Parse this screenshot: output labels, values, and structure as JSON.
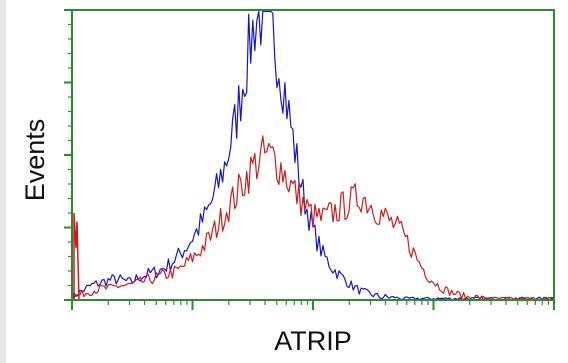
{
  "chart_data": {
    "type": "line",
    "title": "",
    "xlabel": "ATRIP",
    "ylabel": "Events",
    "xlim": [
      0,
      1000
    ],
    "ylim": [
      0,
      100
    ],
    "x_log_scale": true,
    "grid": false,
    "legend": "none",
    "frame_color": "#2e8b2e",
    "series": [
      {
        "color": "#1515c8",
        "x": [
          0,
          20,
          40,
          60,
          80,
          100,
          120,
          140,
          160,
          180,
          200,
          220,
          240,
          260,
          280,
          300,
          320,
          340,
          360,
          380,
          400,
          420,
          440,
          460,
          480,
          500,
          520,
          540,
          560,
          580,
          600,
          620,
          640,
          660,
          680,
          700,
          720,
          740,
          760,
          780,
          800,
          820,
          840,
          860,
          880,
          900,
          920,
          940,
          960,
          980,
          1000
        ],
        "values": [
          1,
          3,
          5,
          6,
          7,
          7,
          6,
          8,
          9,
          10,
          12,
          15,
          19,
          24,
          30,
          38,
          48,
          62,
          80,
          97,
          100,
          90,
          74,
          54,
          36,
          24,
          16,
          11,
          8,
          5,
          3,
          2,
          1,
          1,
          0,
          0,
          0,
          0,
          0,
          0,
          0,
          0,
          0,
          0,
          0,
          0,
          0,
          0,
          0,
          0,
          0
        ]
      },
      {
        "color": "#cc1c1c",
        "x": [
          0,
          20,
          40,
          60,
          80,
          100,
          120,
          140,
          160,
          180,
          200,
          220,
          240,
          260,
          280,
          300,
          320,
          340,
          360,
          380,
          400,
          420,
          440,
          460,
          480,
          500,
          520,
          540,
          560,
          580,
          600,
          620,
          640,
          660,
          680,
          700,
          720,
          740,
          760,
          780,
          800,
          820,
          840,
          860,
          880,
          900,
          920,
          940,
          960,
          980,
          1000
        ],
        "values": [
          1,
          2,
          3,
          4,
          4,
          5,
          5,
          6,
          7,
          8,
          9,
          10,
          13,
          16,
          20,
          25,
          31,
          36,
          42,
          47,
          50,
          49,
          44,
          38,
          33,
          29,
          28,
          30,
          32,
          34,
          36,
          33,
          30,
          27,
          24,
          19,
          13,
          8,
          5,
          3,
          2,
          1,
          1,
          0,
          0,
          0,
          0,
          0,
          0,
          0,
          0
        ]
      }
    ],
    "baseline_spike": {
      "color": "#cc1c1c",
      "x": 0,
      "value": 30
    }
  }
}
